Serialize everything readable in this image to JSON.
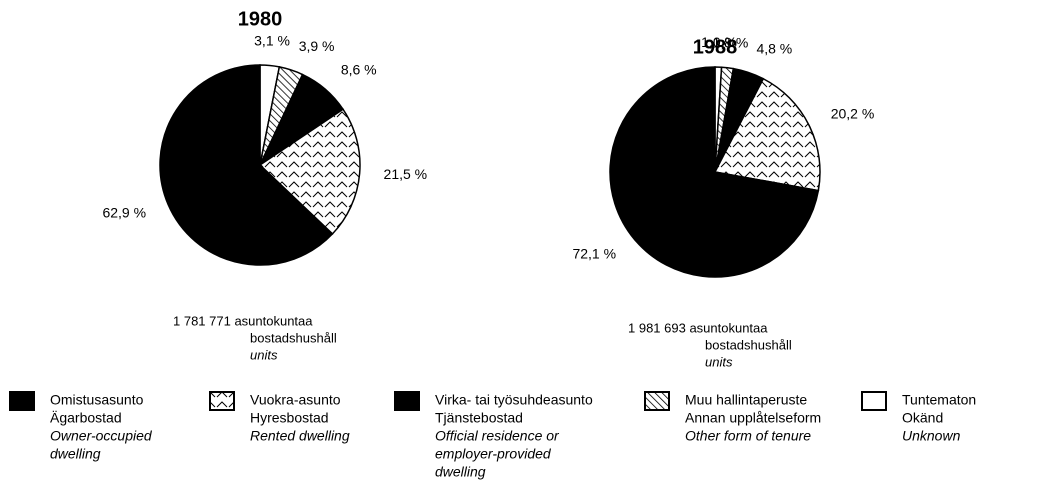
{
  "chart_data": [
    {
      "type": "pie",
      "title": "1980",
      "values": [
        62.9,
        21.5,
        8.6,
        3.9,
        3.1
      ],
      "value_labels": [
        "62,9 %",
        "21,5 %",
        "8,6 %",
        "3,9 %",
        "3,1 %"
      ],
      "note": [
        "1 781 771 asuntokuntaa",
        "bostadshushåll",
        "units"
      ]
    },
    {
      "type": "pie",
      "title": "1988",
      "values": [
        72.1,
        20.2,
        4.8,
        1.8,
        1.0
      ],
      "value_labels": [
        "72,1 %",
        "20,2 %",
        "4,8 %",
        "1,8 %",
        "1,0 %"
      ],
      "note": [
        "1 981 693 asuntokuntaa",
        "bostadshushåll",
        "units"
      ]
    }
  ],
  "legend": {
    "items": [
      {
        "pattern": "solid",
        "fi": "Omistusasunto",
        "sv": "Ägarbostad",
        "en": [
          "Owner-occupied",
          "dwelling"
        ]
      },
      {
        "pattern": "zigzag",
        "fi": "Vuokra-asunto",
        "sv": "Hyresbostad",
        "en": [
          "Rented dwelling"
        ]
      },
      {
        "pattern": "solid",
        "fi": "Virka- tai työsuhdeasunto",
        "sv": "Tjänstebostad",
        "en": [
          "Official residence or",
          "employer-provided",
          "dwelling"
        ]
      },
      {
        "pattern": "hatch",
        "fi": "Muu hallintaperuste",
        "sv": "Annan upplåtelseform",
        "en": [
          "Other form of tenure"
        ]
      },
      {
        "pattern": "white",
        "fi": "Tuntematon",
        "sv": "Okänd",
        "en": [
          "Unknown"
        ]
      }
    ]
  }
}
